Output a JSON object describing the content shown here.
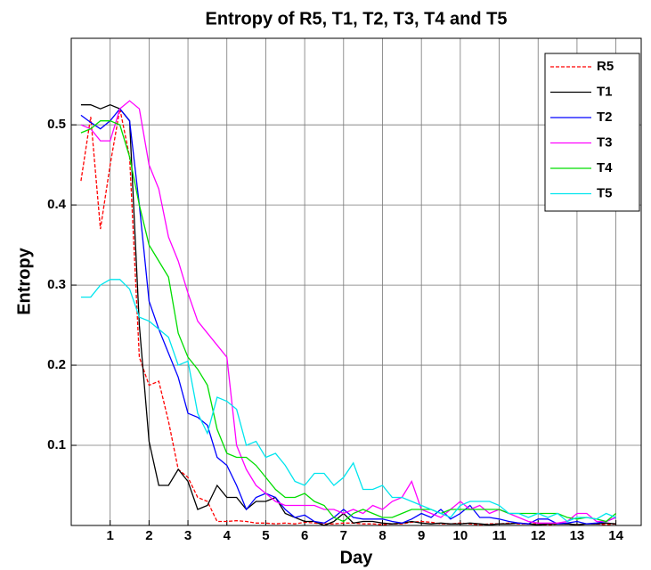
{
  "chart_data": {
    "type": "line",
    "title": "Entropy of R5, T1, T2, T3, T4 and T5",
    "xlabel": "Day",
    "ylabel": "Entropy",
    "x": [
      0.25,
      0.5,
      0.75,
      1,
      1.25,
      1.5,
      1.75,
      2,
      2.25,
      2.5,
      2.75,
      3,
      3.25,
      3.5,
      3.75,
      4,
      4.25,
      4.5,
      4.75,
      5,
      5.25,
      5.5,
      5.75,
      6,
      6.25,
      6.5,
      6.75,
      7,
      7.25,
      7.5,
      7.75,
      8,
      8.25,
      8.5,
      8.75,
      9,
      9.25,
      9.5,
      9.75,
      10,
      10.25,
      10.5,
      10.75,
      11,
      11.25,
      11.5,
      11.75,
      12,
      12.25,
      12.5,
      12.75,
      13,
      13.25,
      13.5,
      13.75,
      14
    ],
    "series": [
      {
        "name": "R5",
        "color": "#ff0000",
        "dashed": true,
        "values": [
          0.43,
          0.51,
          0.37,
          0.45,
          0.52,
          0.46,
          0.21,
          0.175,
          0.18,
          0.13,
          0.07,
          0.06,
          0.035,
          0.03,
          0.005,
          0.005,
          0.006,
          0.005,
          0.003,
          0.003,
          0.002,
          0.003,
          0.002,
          0.004,
          0.003,
          0.002,
          0.002,
          0.003,
          0.003,
          0.002,
          0.002,
          0.001,
          0.002,
          0.002,
          0.004,
          0.005,
          0.004,
          0.002,
          0.002,
          0.003,
          0.002,
          0.001,
          0.002,
          0.002,
          0.003,
          0.002,
          0.002,
          0.002,
          0.001,
          0.002,
          0.002,
          0.001,
          0.002,
          0.002,
          0.001,
          0.002
        ]
      },
      {
        "name": "T1",
        "color": "#000000",
        "values": [
          0.525,
          0.525,
          0.52,
          0.525,
          0.52,
          0.505,
          0.25,
          0.105,
          0.05,
          0.05,
          0.07,
          0.055,
          0.02,
          0.025,
          0.05,
          0.035,
          0.035,
          0.02,
          0.03,
          0.03,
          0.035,
          0.015,
          0.01,
          0.005,
          0.005,
          0.0,
          0.005,
          0.015,
          0.003,
          0.005,
          0.005,
          0.003,
          0.002,
          0.003,
          0.005,
          0.003,
          0.002,
          0.003,
          0.002,
          0.002,
          0.003,
          0.002,
          0.001,
          0.002,
          0.002,
          0.003,
          0.002,
          0.001,
          0.002,
          0.002,
          0.002,
          0.001,
          0.002,
          0.002,
          0.003,
          0.002
        ]
      },
      {
        "name": "T2",
        "color": "#0000ff",
        "values": [
          0.512,
          0.503,
          0.495,
          0.505,
          0.52,
          0.505,
          0.4,
          0.28,
          0.245,
          0.215,
          0.185,
          0.14,
          0.135,
          0.125,
          0.085,
          0.075,
          0.05,
          0.02,
          0.035,
          0.04,
          0.035,
          0.02,
          0.01,
          0.013,
          0.005,
          0.003,
          0.01,
          0.02,
          0.01,
          0.008,
          0.008,
          0.008,
          0.005,
          0.003,
          0.008,
          0.015,
          0.01,
          0.02,
          0.008,
          0.015,
          0.025,
          0.01,
          0.01,
          0.008,
          0.005,
          0.003,
          0.002,
          0.008,
          0.008,
          0.002,
          0.003,
          0.005,
          0.002,
          0.003,
          0.005,
          0.01
        ]
      },
      {
        "name": "T3",
        "color": "#ff00ff",
        "values": [
          0.5,
          0.495,
          0.48,
          0.48,
          0.52,
          0.53,
          0.52,
          0.45,
          0.42,
          0.36,
          0.33,
          0.29,
          0.255,
          0.24,
          0.225,
          0.21,
          0.1,
          0.07,
          0.05,
          0.04,
          0.03,
          0.025,
          0.025,
          0.025,
          0.025,
          0.02,
          0.02,
          0.015,
          0.02,
          0.015,
          0.025,
          0.02,
          0.03,
          0.035,
          0.055,
          0.02,
          0.015,
          0.01,
          0.02,
          0.03,
          0.02,
          0.025,
          0.015,
          0.02,
          0.015,
          0.01,
          0.005,
          0.003,
          0.003,
          0.003,
          0.005,
          0.015,
          0.015,
          0.005,
          0.005,
          0.01
        ]
      },
      {
        "name": "T4",
        "color": "#00dd00",
        "values": [
          0.49,
          0.495,
          0.505,
          0.505,
          0.5,
          0.46,
          0.4,
          0.35,
          0.33,
          0.31,
          0.24,
          0.21,
          0.195,
          0.175,
          0.12,
          0.09,
          0.085,
          0.085,
          0.075,
          0.06,
          0.045,
          0.035,
          0.035,
          0.04,
          0.03,
          0.025,
          0.01,
          0.005,
          0.015,
          0.02,
          0.015,
          0.01,
          0.01,
          0.015,
          0.02,
          0.02,
          0.02,
          0.015,
          0.02,
          0.02,
          0.02,
          0.02,
          0.02,
          0.02,
          0.015,
          0.015,
          0.015,
          0.015,
          0.015,
          0.015,
          0.01,
          0.008,
          0.01,
          0.008,
          0.005,
          0.015
        ]
      },
      {
        "name": "T5",
        "color": "#00e5ee",
        "values": [
          0.285,
          0.285,
          0.3,
          0.307,
          0.307,
          0.295,
          0.26,
          0.255,
          0.245,
          0.235,
          0.2,
          0.205,
          0.14,
          0.115,
          0.16,
          0.155,
          0.145,
          0.1,
          0.105,
          0.085,
          0.09,
          0.075,
          0.055,
          0.05,
          0.065,
          0.065,
          0.05,
          0.06,
          0.078,
          0.045,
          0.045,
          0.05,
          0.035,
          0.035,
          0.03,
          0.025,
          0.02,
          0.015,
          0.01,
          0.025,
          0.03,
          0.03,
          0.03,
          0.025,
          0.015,
          0.015,
          0.01,
          0.015,
          0.01,
          0.015,
          0.005,
          0.01,
          0.01,
          0.008,
          0.015,
          0.01
        ]
      }
    ],
    "xlim": [
      0,
      14.65
    ],
    "ylim": [
      0,
      0.608
    ],
    "xticks": [
      1,
      2,
      3,
      4,
      5,
      6,
      7,
      8,
      9,
      10,
      11,
      12,
      13,
      14
    ],
    "yticks": [
      0.1,
      0.2,
      0.3,
      0.4,
      0.5
    ],
    "grid": true,
    "legend": "top-right"
  }
}
